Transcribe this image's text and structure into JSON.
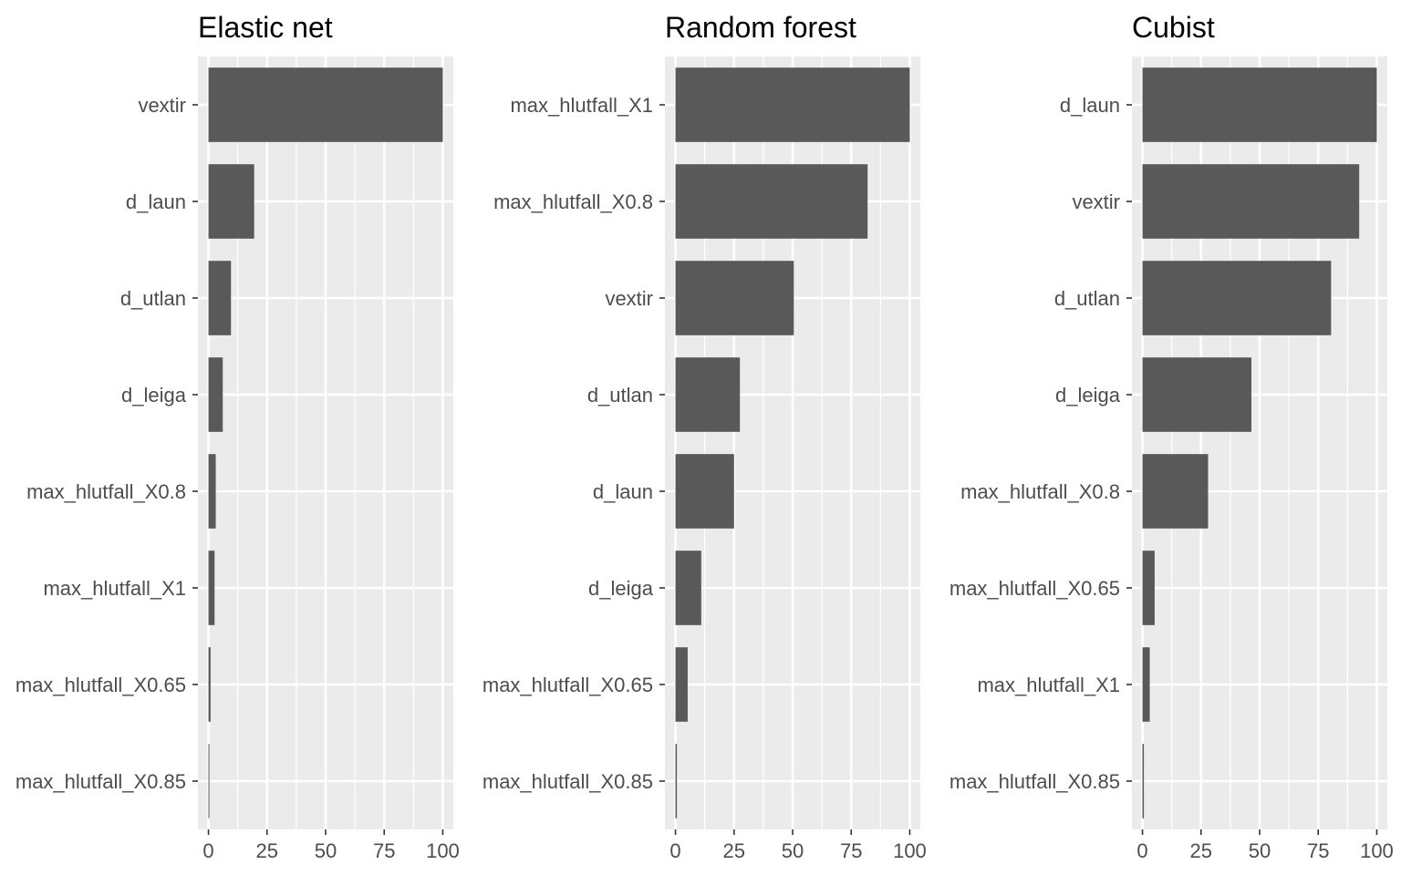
{
  "chart_data": [
    {
      "type": "bar",
      "orientation": "horizontal",
      "title": "Elastic net",
      "xlabel": "",
      "ylabel": "",
      "xlim": [
        -4.5,
        104.5
      ],
      "xticks": [
        "0",
        "25",
        "50",
        "75",
        "100"
      ],
      "grid": true,
      "bar_color": "#595959",
      "panel_bg": "#ebebeb",
      "categories": [
        "vextir",
        "d_laun",
        "d_utlan",
        "d_leiga",
        "max_hlutfall_X0.8",
        "max_hlutfall_X1",
        "max_hlutfall_X0.65",
        "max_hlutfall_X0.85"
      ],
      "values": [
        100,
        19.5,
        9.6,
        6.1,
        3.1,
        2.6,
        0.9,
        0.4
      ]
    },
    {
      "type": "bar",
      "orientation": "horizontal",
      "title": "Random forest",
      "xlabel": "",
      "ylabel": "",
      "xlim": [
        -4.5,
        104.5
      ],
      "xticks": [
        "0",
        "25",
        "50",
        "75",
        "100"
      ],
      "grid": true,
      "bar_color": "#595959",
      "panel_bg": "#ebebeb",
      "categories": [
        "max_hlutfall_X1",
        "max_hlutfall_X0.8",
        "vextir",
        "d_utlan",
        "d_laun",
        "d_leiga",
        "max_hlutfall_X0.65",
        "max_hlutfall_X0.85"
      ],
      "values": [
        100,
        82,
        50.5,
        27.5,
        25,
        11,
        5.2,
        0.6
      ]
    },
    {
      "type": "bar",
      "orientation": "horizontal",
      "title": "Cubist",
      "xlabel": "",
      "ylabel": "",
      "xlim": [
        -4.5,
        104.5
      ],
      "xticks": [
        "0",
        "25",
        "50",
        "75",
        "100"
      ],
      "grid": true,
      "bar_color": "#595959",
      "panel_bg": "#ebebeb",
      "categories": [
        "d_laun",
        "vextir",
        "d_utlan",
        "d_leiga",
        "max_hlutfall_X0.8",
        "max_hlutfall_X0.65",
        "max_hlutfall_X1",
        "max_hlutfall_X0.85"
      ],
      "values": [
        100,
        92.5,
        80.5,
        46.5,
        28,
        5.2,
        3.1,
        0.6
      ]
    }
  ]
}
